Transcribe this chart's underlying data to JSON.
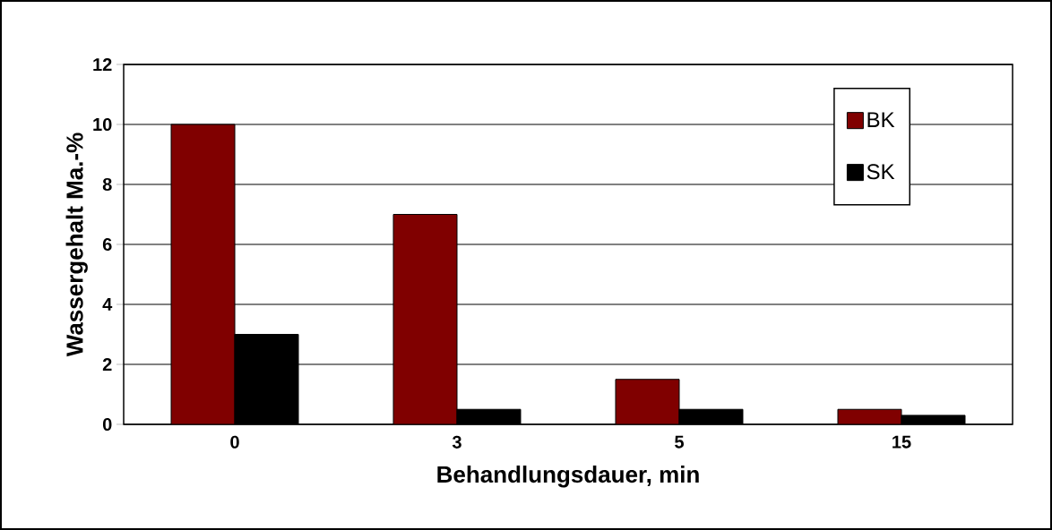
{
  "chart_data": {
    "type": "bar",
    "xlabel": "Behandlungsdauer, min",
    "ylabel": "Wassergehalt Ma.-%",
    "categories": [
      "0",
      "3",
      "5",
      "15"
    ],
    "series": [
      {
        "name": "BK",
        "color": "#800000",
        "values": [
          10,
          7,
          1.5,
          0.5
        ]
      },
      {
        "name": "SK",
        "color": "#000000",
        "values": [
          3,
          0.5,
          0.5,
          0.3
        ]
      }
    ],
    "ylim": [
      0,
      12
    ],
    "yticks": [
      0,
      2,
      4,
      6,
      8,
      10,
      12
    ],
    "grid": "y",
    "legend": "top right"
  }
}
